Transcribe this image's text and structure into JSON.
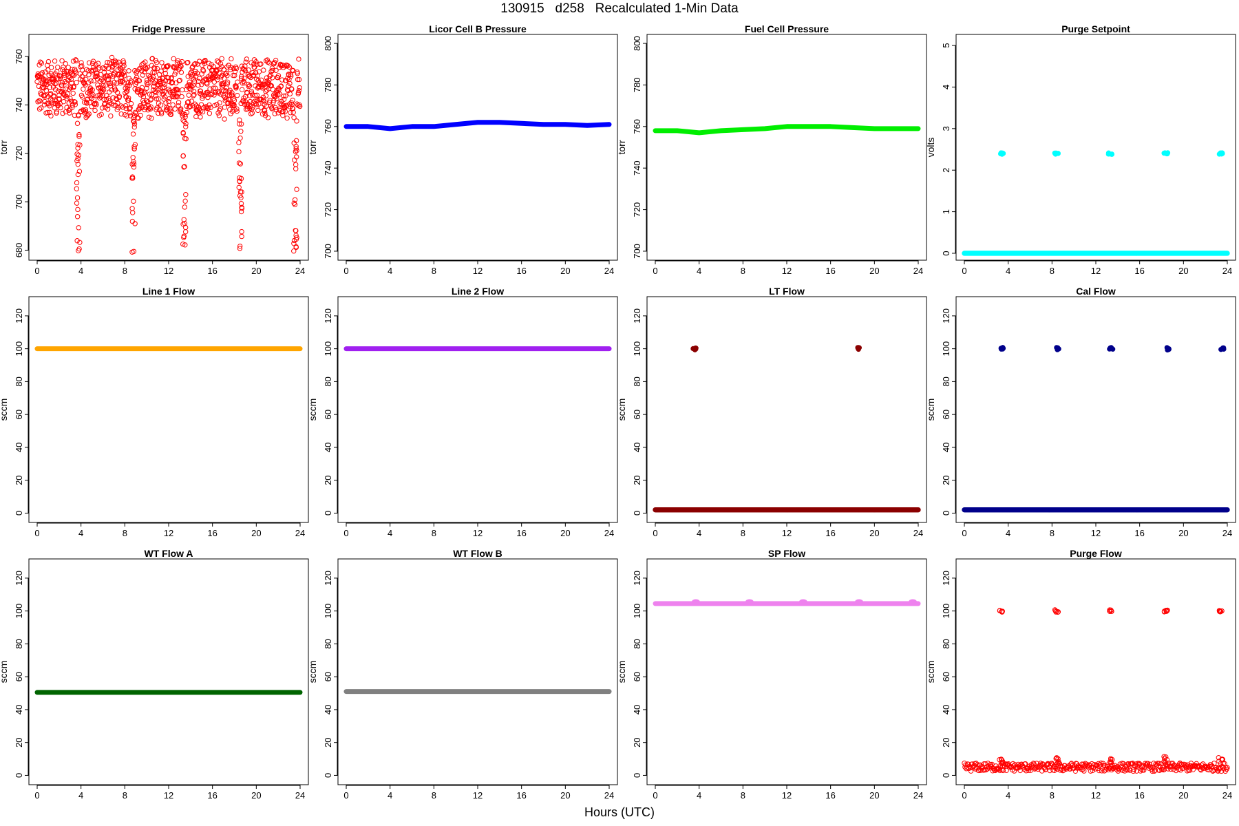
{
  "figure": {
    "title": "130915   d258   Recalculated 1-Min Data",
    "x_label": "Hours (UTC)"
  },
  "chart_data": [
    {
      "id": "fridge",
      "title": "Fridge Pressure",
      "type": "scatter",
      "ylabel": "torr",
      "color": "#ff0000",
      "marker": "open",
      "xlim": [
        0,
        24
      ],
      "ylim": [
        677,
        768
      ],
      "yticks": [
        680,
        700,
        720,
        740,
        760
      ],
      "xticks": [
        0,
        4,
        8,
        12,
        16,
        20,
        24
      ],
      "pattern": {
        "baseline": 747,
        "spread": 11,
        "gaps": [
          [
            3.6,
            3.9
          ],
          [
            8.6,
            8.9
          ],
          [
            13.3,
            13.6
          ],
          [
            18.3,
            18.6
          ],
          [
            23.4,
            23.7
          ]
        ],
        "dips": [
          3.75,
          8.8,
          13.45,
          18.55,
          23.55
        ],
        "dip_low": 679
      }
    },
    {
      "id": "licor",
      "title": "Licor Cell B Pressure",
      "type": "line",
      "ylabel": "torr",
      "color": "#0000ff",
      "xlim": [
        0,
        24
      ],
      "ylim": [
        697,
        803
      ],
      "yticks": [
        700,
        720,
        740,
        760,
        780,
        800
      ],
      "xticks": [
        0,
        4,
        8,
        12,
        16,
        20,
        24
      ],
      "x": [
        0,
        2,
        4,
        6,
        8,
        10,
        12,
        14,
        16,
        18,
        20,
        22,
        24
      ],
      "y": [
        760,
        760,
        759,
        760,
        760,
        761,
        762,
        762,
        761.5,
        761,
        761,
        760.5,
        761
      ]
    },
    {
      "id": "fuelcell",
      "title": "Fuel Cell Pressure",
      "type": "line",
      "ylabel": "torr",
      "color": "#00ee00",
      "xlim": [
        0,
        24
      ],
      "ylim": [
        697,
        803
      ],
      "yticks": [
        700,
        720,
        740,
        760,
        780,
        800
      ],
      "xticks": [
        0,
        4,
        8,
        12,
        16,
        20,
        24
      ],
      "x": [
        0,
        2,
        4,
        6,
        8,
        10,
        12,
        14,
        16,
        18,
        20,
        22,
        24
      ],
      "y": [
        758,
        758,
        757,
        758,
        758.5,
        759,
        760,
        760,
        760,
        759.5,
        759,
        759,
        759
      ]
    },
    {
      "id": "purge_sp",
      "title": "Purge Setpoint",
      "type": "scatter",
      "ylabel": "volts",
      "color": "#00ffff",
      "marker": "filled",
      "xlim": [
        0,
        24
      ],
      "ylim": [
        -0.1,
        5.2
      ],
      "yticks": [
        0,
        1,
        2,
        3,
        4,
        5
      ],
      "xticks": [
        0,
        4,
        8,
        12,
        16,
        20,
        24
      ],
      "baseline": 0,
      "events": [
        3.4,
        8.4,
        13.3,
        18.4,
        23.4
      ],
      "event_value": 2.4
    },
    {
      "id": "line1",
      "title": "Line 1 Flow",
      "type": "line",
      "ylabel": "sccm",
      "color": "#ffa500",
      "xlim": [
        0,
        24
      ],
      "ylim": [
        -4,
        130
      ],
      "yticks": [
        0,
        20,
        40,
        60,
        80,
        100,
        120
      ],
      "xticks": [
        0,
        4,
        8,
        12,
        16,
        20,
        24
      ],
      "x": [
        0,
        24
      ],
      "y": [
        100,
        100
      ]
    },
    {
      "id": "line2",
      "title": "Line 2 Flow",
      "type": "line",
      "ylabel": "sccm",
      "color": "#a020f0",
      "xlim": [
        0,
        24
      ],
      "ylim": [
        -4,
        130
      ],
      "yticks": [
        0,
        20,
        40,
        60,
        80,
        100,
        120
      ],
      "xticks": [
        0,
        4,
        8,
        12,
        16,
        20,
        24
      ],
      "x": [
        0,
        24
      ],
      "y": [
        100,
        100
      ]
    },
    {
      "id": "lt",
      "title": "LT Flow",
      "type": "scatter",
      "ylabel": "sccm",
      "color": "#8b0000",
      "marker": "filled",
      "xlim": [
        0,
        24
      ],
      "ylim": [
        -4,
        130
      ],
      "yticks": [
        0,
        20,
        40,
        60,
        80,
        100,
        120
      ],
      "xticks": [
        0,
        4,
        8,
        12,
        16,
        20,
        24
      ],
      "baseline": 2,
      "events": [
        3.6,
        18.6
      ],
      "event_value": 100
    },
    {
      "id": "cal",
      "title": "Cal Flow",
      "type": "scatter",
      "ylabel": "sccm",
      "color": "#00008b",
      "marker": "filled",
      "xlim": [
        0,
        24
      ],
      "ylim": [
        -4,
        130
      ],
      "yticks": [
        0,
        20,
        40,
        60,
        80,
        100,
        120
      ],
      "xticks": [
        0,
        4,
        8,
        12,
        16,
        20,
        24
      ],
      "baseline": 2,
      "events": [
        3.5,
        8.5,
        13.4,
        18.5,
        23.5
      ],
      "event_value": 100
    },
    {
      "id": "wta",
      "title": "WT Flow A",
      "type": "line",
      "ylabel": "sccm",
      "color": "#006400",
      "xlim": [
        0,
        24
      ],
      "ylim": [
        -4,
        130
      ],
      "yticks": [
        0,
        20,
        40,
        60,
        80,
        100,
        120
      ],
      "xticks": [
        0,
        4,
        8,
        12,
        16,
        20,
        24
      ],
      "x": [
        0,
        24
      ],
      "y": [
        50.5,
        50.5
      ]
    },
    {
      "id": "wtb",
      "title": "WT Flow B",
      "type": "line",
      "ylabel": "sccm",
      "color": "#808080",
      "xlim": [
        0,
        24
      ],
      "ylim": [
        -4,
        130
      ],
      "yticks": [
        0,
        20,
        40,
        60,
        80,
        100,
        120
      ],
      "xticks": [
        0,
        4,
        8,
        12,
        16,
        20,
        24
      ],
      "x": [
        0,
        24
      ],
      "y": [
        51,
        51
      ]
    },
    {
      "id": "sp",
      "title": "SP Flow",
      "type": "line",
      "ylabel": "sccm",
      "color": "#ee82ee",
      "xlim": [
        0,
        24
      ],
      "ylim": [
        -4,
        130
      ],
      "yticks": [
        0,
        20,
        40,
        60,
        80,
        100,
        120
      ],
      "xticks": [
        0,
        4,
        8,
        12,
        16,
        20,
        24
      ],
      "x": [
        0,
        24
      ],
      "y": [
        104.5,
        104.5
      ],
      "bumps": [
        3.7,
        8.6,
        13.5,
        18.6,
        23.5
      ],
      "bump_value": 105.5
    },
    {
      "id": "purge_flow",
      "title": "Purge Flow",
      "type": "scatter",
      "ylabel": "sccm",
      "color": "#ff0000",
      "marker": "open",
      "xlim": [
        0,
        24
      ],
      "ylim": [
        -4,
        130
      ],
      "yticks": [
        0,
        20,
        40,
        60,
        80,
        100,
        120
      ],
      "xticks": [
        0,
        4,
        8,
        12,
        16,
        20,
        24
      ],
      "baseline": 5,
      "spread": 2.5,
      "events": [
        3.4,
        8.4,
        13.3,
        18.4,
        23.4
      ],
      "event_value": 100
    }
  ]
}
